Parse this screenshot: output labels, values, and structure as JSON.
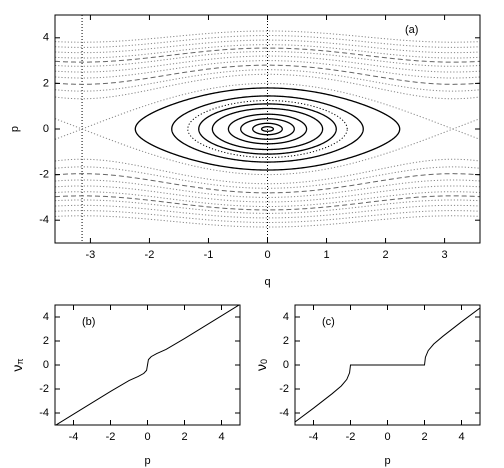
{
  "chart_data": [
    {
      "type": "phase-portrait",
      "annotation": "(a)",
      "xlabel": "q",
      "ylabel": "p",
      "xlim": [
        -3.6,
        3.6
      ],
      "ylim": [
        -5,
        5
      ],
      "xticks": [
        -3,
        -2,
        -1,
        0,
        1,
        2,
        3
      ],
      "yticks": [
        -4,
        -2,
        0,
        2,
        4
      ],
      "vlines": [
        -3.14159,
        0
      ],
      "orbits": [
        {
          "style": "solid",
          "color": "#000000",
          "p0": [
            0.1,
            0.25,
            0.45,
            0.65,
            0.9,
            1.1,
            1.45,
            1.8
          ]
        },
        {
          "style": "dotted",
          "color": "#000000",
          "p0": [
            1.25
          ]
        },
        {
          "style": "dotted",
          "color": "#888888",
          "p0": [
            2.0,
            2.4,
            2.6,
            3.0,
            3.2,
            3.4,
            3.7,
            3.9,
            4.1,
            4.3
          ]
        },
        {
          "style": "dashed",
          "color": "#666666",
          "p0": [
            2.8,
            3.55
          ]
        }
      ]
    },
    {
      "type": "line",
      "annotation": "(b)",
      "xlabel": "p",
      "ylabel": {
        "symbol": "ν",
        "subscript": "π"
      },
      "xlim": [
        -5,
        5
      ],
      "ylim": [
        -5,
        5
      ],
      "xticks": [
        -4,
        -2,
        0,
        2,
        4
      ],
      "yticks": [
        -4,
        -2,
        0,
        2,
        4
      ],
      "color": "#000000",
      "x": [
        -5,
        -4,
        -3,
        -2,
        -1,
        -0.5,
        -0.2,
        -0.05,
        0,
        0.05,
        0.2,
        0.5,
        1,
        2,
        3,
        4,
        5
      ],
      "y": [
        -5.05,
        -4.1,
        -3.15,
        -2.2,
        -1.3,
        -0.95,
        -0.7,
        -0.45,
        0,
        0.45,
        0.7,
        0.95,
        1.3,
        2.2,
        3.15,
        4.1,
        5.05
      ]
    },
    {
      "type": "line",
      "annotation": "(c)",
      "xlabel": "p",
      "ylabel": {
        "symbol": "ν",
        "subscript": "0"
      },
      "xlim": [
        -5,
        5
      ],
      "ylim": [
        -5,
        5
      ],
      "xticks": [
        -4,
        -2,
        0,
        2,
        4
      ],
      "yticks": [
        -4,
        -2,
        0,
        2,
        4
      ],
      "color": "#000000",
      "x": [
        -5,
        -4,
        -3,
        -2.5,
        -2.2,
        -2.05,
        -2,
        2,
        2.05,
        2.2,
        2.5,
        3,
        4,
        5
      ],
      "y": [
        -4.75,
        -3.6,
        -2.4,
        -1.75,
        -1.2,
        -0.65,
        0,
        0,
        0.65,
        1.2,
        1.75,
        2.4,
        3.6,
        4.75
      ]
    }
  ]
}
